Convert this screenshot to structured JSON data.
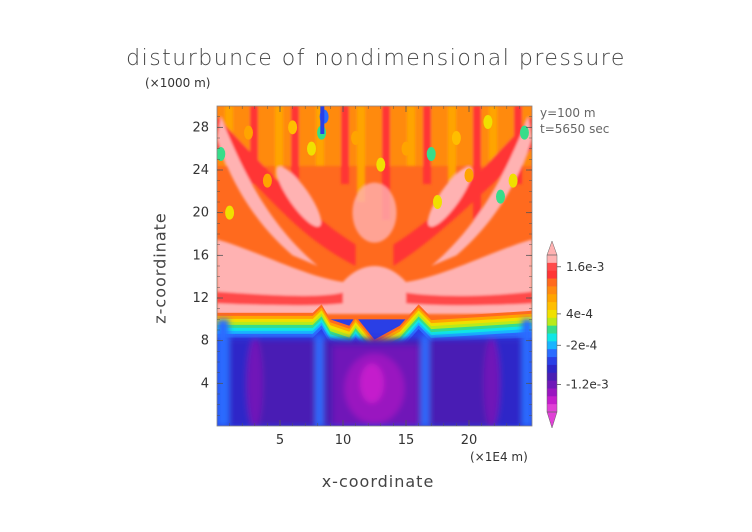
{
  "title": "disturbunce of nondimensional pressure",
  "top_unit": "(×1000 m)",
  "info": {
    "line1": "y=100 m",
    "line2": "t=5650 sec"
  },
  "chart_data": {
    "type": "heatmap",
    "title": "disturbunce of nondimensional pressure",
    "xlabel": "x-coordinate",
    "ylabel": "z-coordinate",
    "x_unit": "(×1E4 m)",
    "y_unit": "(×1000 m)",
    "xlim": [
      0,
      25
    ],
    "ylim": [
      0,
      30
    ],
    "x_ticks": [
      5,
      10,
      15,
      20
    ],
    "y_ticks": [
      4,
      8,
      12,
      16,
      20,
      24,
      28
    ],
    "colorbar": {
      "orientation": "vertical",
      "labels": [
        "1.6e-3",
        "4e-4",
        "-2e-4",
        "-1.2e-3"
      ],
      "label_values": [
        0.0016,
        0.0004,
        -0.0002,
        -0.0012
      ],
      "levels": [
        {
          "value": 0.0017,
          "color": "#ffb2b2"
        },
        {
          "value": 0.0016,
          "color": "#ff4a4a"
        },
        {
          "value": 0.0013,
          "color": "#ff3535"
        },
        {
          "value": 0.0011,
          "color": "#ff6a1e"
        },
        {
          "value": 0.0009,
          "color": "#ff8a10"
        },
        {
          "value": 0.0007,
          "color": "#ffa400"
        },
        {
          "value": 0.0005,
          "color": "#ffbe00"
        },
        {
          "value": 0.0004,
          "color": "#f0e000"
        },
        {
          "value": 0.0002,
          "color": "#b9ea1a"
        },
        {
          "value": 0.0001,
          "color": "#36dd8a"
        },
        {
          "value": -0.0001,
          "color": "#0fe6e6"
        },
        {
          "value": -0.0002,
          "color": "#19b4ff"
        },
        {
          "value": -0.0004,
          "color": "#2b6cff"
        },
        {
          "value": -0.0006,
          "color": "#2a3fe6"
        },
        {
          "value": -0.0008,
          "color": "#2d25c8"
        },
        {
          "value": -0.001,
          "color": "#4a1eb4"
        },
        {
          "value": -0.0012,
          "color": "#7018b8"
        },
        {
          "value": -0.0014,
          "color": "#9a16c0"
        },
        {
          "value": -0.0016,
          "color": "#c41ecc"
        },
        {
          "value": -0.0018,
          "color": "#e040d6"
        }
      ]
    },
    "grid": false,
    "legend": "colorbar-right"
  }
}
